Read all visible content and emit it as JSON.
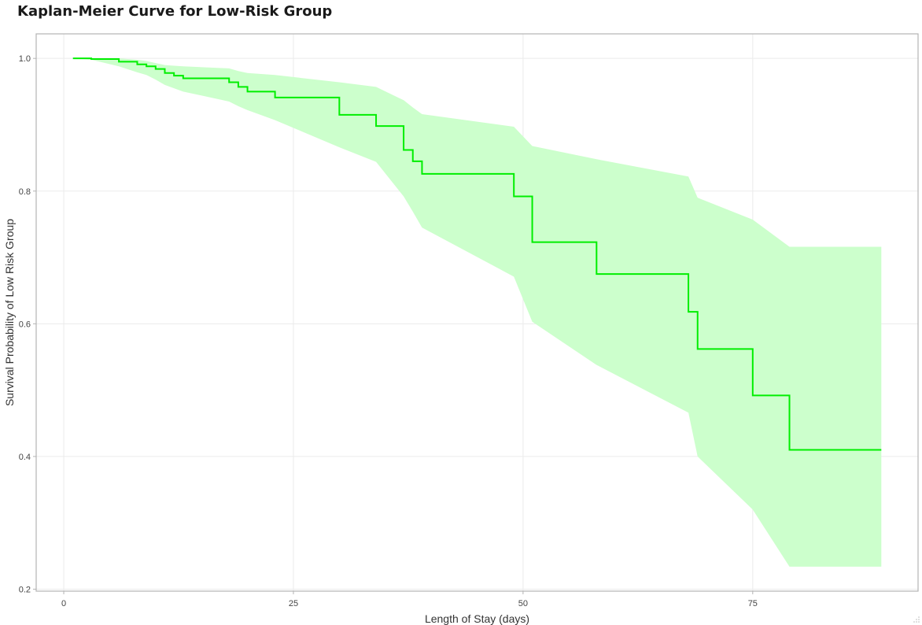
{
  "chart_data": {
    "type": "line",
    "step": true,
    "title": "Kaplan-Meier Curve for Low-Risk Group",
    "xlabel": "Length of Stay (days)",
    "ylabel": "Survival Probability of Low Risk Group",
    "xlim": [
      -3,
      93
    ],
    "ylim": [
      0.197,
      1.037
    ],
    "x_ticks": [
      0,
      25,
      50,
      75
    ],
    "y_ticks": [
      0.2,
      0.4,
      0.6,
      0.8,
      1.0
    ],
    "y_tick_labels": [
      "0.2",
      "0.4",
      "0.6",
      "0.8",
      "1.0"
    ],
    "grid": true,
    "legend": "none",
    "colors": {
      "line": "#00ee00",
      "band": "#ccffcc",
      "grid": "#ebebeb",
      "frame": "#b3b3b3"
    },
    "series": [
      {
        "x": [
          1,
          3,
          6,
          8,
          9,
          10,
          11,
          12,
          13,
          18,
          19,
          20,
          23,
          30,
          34,
          37,
          38,
          39,
          49,
          51,
          58,
          68,
          69,
          75,
          79,
          89
        ],
        "values": [
          1.0,
          0.999,
          0.995,
          0.991,
          0.988,
          0.984,
          0.978,
          0.974,
          0.97,
          0.964,
          0.957,
          0.95,
          0.941,
          0.915,
          0.898,
          0.862,
          0.845,
          0.826,
          0.792,
          0.723,
          0.675,
          0.618,
          0.562,
          0.492,
          0.41,
          0.41
        ]
      }
    ],
    "confidence_band": {
      "x": [
        1,
        3,
        6,
        8,
        9,
        10,
        11,
        12,
        13,
        18,
        19,
        20,
        23,
        30,
        34,
        37,
        38,
        39,
        49,
        51,
        58,
        68,
        69,
        75,
        79,
        89
      ],
      "upper": [
        1.0,
        1.0,
        1.0,
        0.998,
        0.996,
        0.993,
        0.99,
        0.989,
        0.988,
        0.985,
        0.981,
        0.978,
        0.975,
        0.964,
        0.957,
        0.937,
        0.926,
        0.916,
        0.897,
        0.868,
        0.848,
        0.822,
        0.79,
        0.757,
        0.716,
        0.716
      ],
      "lower": [
        1.0,
        0.998,
        0.988,
        0.979,
        0.975,
        0.968,
        0.96,
        0.955,
        0.95,
        0.935,
        0.928,
        0.922,
        0.907,
        0.866,
        0.844,
        0.792,
        0.769,
        0.745,
        0.671,
        0.603,
        0.538,
        0.466,
        0.4,
        0.32,
        0.234,
        0.234
      ]
    }
  }
}
